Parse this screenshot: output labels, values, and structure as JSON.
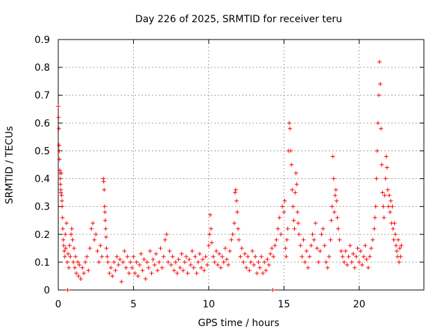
{
  "chart_data": {
    "type": "scatter",
    "title": "Day 226 of 2025, SRMTID for receiver teru",
    "xlabel": "GPS time / hours",
    "ylabel": "SRMTID / TECUs",
    "xlim": [
      0,
      24.3
    ],
    "ylim": [
      0,
      0.9
    ],
    "grid": true,
    "marker": "plus",
    "color": "#ff0000",
    "x_ticks": [
      0,
      5,
      10,
      15,
      20
    ],
    "x_tick_labels": [
      "0",
      "5",
      "10",
      "15",
      "20"
    ],
    "y_ticks": [
      0,
      0.1,
      0.2,
      0.3,
      0.4,
      0.5,
      0.6,
      0.7,
      0.8,
      0.9
    ],
    "y_tick_labels": [
      "0",
      "0.1",
      "0.2",
      "0.3",
      "0.4",
      "0.5",
      "0.6",
      "0.7",
      "0.8",
      "0.9"
    ],
    "series": [
      {
        "name": "SRMTID",
        "points": [
          [
            0.0,
            0.66
          ],
          [
            0.02,
            0.62
          ],
          [
            0.04,
            0.58
          ],
          [
            0.05,
            0.52
          ],
          [
            0.07,
            0.5
          ],
          [
            0.08,
            0.47
          ],
          [
            0.1,
            0.43
          ],
          [
            0.12,
            0.42
          ],
          [
            0.13,
            0.4
          ],
          [
            0.15,
            0.38
          ],
          [
            0.17,
            0.36
          ],
          [
            0.18,
            0.35
          ],
          [
            0.2,
            0.42
          ],
          [
            0.22,
            0.34
          ],
          [
            0.24,
            0.32
          ],
          [
            0.26,
            0.3
          ],
          [
            0.28,
            0.26
          ],
          [
            0.3,
            0.22
          ],
          [
            0.33,
            0.18
          ],
          [
            0.36,
            0.16
          ],
          [
            0.4,
            0.14
          ],
          [
            0.43,
            0.12
          ],
          [
            0.47,
            0.2
          ],
          [
            0.5,
            0.15
          ],
          [
            0.55,
            0.24
          ],
          [
            0.6,
            0.1
          ],
          [
            0.62,
            0.0
          ],
          [
            0.65,
            0.13
          ],
          [
            0.7,
            0.08
          ],
          [
            0.75,
            0.16
          ],
          [
            0.8,
            0.12
          ],
          [
            0.85,
            0.2
          ],
          [
            0.9,
            0.22
          ],
          [
            0.95,
            0.18
          ],
          [
            1.0,
            0.1
          ],
          [
            1.05,
            0.15
          ],
          [
            1.1,
            0.08
          ],
          [
            1.15,
            0.12
          ],
          [
            1.2,
            0.06
          ],
          [
            1.3,
            0.1
          ],
          [
            1.35,
            0.05
          ],
          [
            1.4,
            0.09
          ],
          [
            1.5,
            0.04
          ],
          [
            1.6,
            0.08
          ],
          [
            1.7,
            0.06
          ],
          [
            1.8,
            0.1
          ],
          [
            1.9,
            0.12
          ],
          [
            2.0,
            0.07
          ],
          [
            2.1,
            0.15
          ],
          [
            2.2,
            0.22
          ],
          [
            2.3,
            0.24
          ],
          [
            2.4,
            0.18
          ],
          [
            2.5,
            0.2
          ],
          [
            2.6,
            0.14
          ],
          [
            2.7,
            0.1
          ],
          [
            2.8,
            0.16
          ],
          [
            2.9,
            0.12
          ],
          [
            3.0,
            0.4
          ],
          [
            3.02,
            0.39
          ],
          [
            3.05,
            0.36
          ],
          [
            3.08,
            0.3
          ],
          [
            3.1,
            0.28
          ],
          [
            3.12,
            0.25
          ],
          [
            3.15,
            0.22
          ],
          [
            3.18,
            0.19
          ],
          [
            3.2,
            0.15
          ],
          [
            3.25,
            0.12
          ],
          [
            3.3,
            0.1
          ],
          [
            3.4,
            0.06
          ],
          [
            3.5,
            0.08
          ],
          [
            3.6,
            0.05
          ],
          [
            3.7,
            0.1
          ],
          [
            3.8,
            0.07
          ],
          [
            3.9,
            0.12
          ],
          [
            4.0,
            0.09
          ],
          [
            4.1,
            0.11
          ],
          [
            4.2,
            0.03
          ],
          [
            4.3,
            0.1
          ],
          [
            4.4,
            0.14
          ],
          [
            4.5,
            0.08
          ],
          [
            4.6,
            0.12
          ],
          [
            4.7,
            0.06
          ],
          [
            4.8,
            0.1
          ],
          [
            4.9,
            0.08
          ],
          [
            5.0,
            0.12
          ],
          [
            5.1,
            0.06
          ],
          [
            5.2,
            0.1
          ],
          [
            5.3,
            0.05
          ],
          [
            5.4,
            0.09
          ],
          [
            5.5,
            0.13
          ],
          [
            5.6,
            0.07
          ],
          [
            5.7,
            0.11
          ],
          [
            5.8,
            0.04
          ],
          [
            5.9,
            0.1
          ],
          [
            6.0,
            0.08
          ],
          [
            6.1,
            0.14
          ],
          [
            6.2,
            0.06
          ],
          [
            6.3,
            0.11
          ],
          [
            6.4,
            0.09
          ],
          [
            6.5,
            0.13
          ],
          [
            6.6,
            0.07
          ],
          [
            6.7,
            0.1
          ],
          [
            6.8,
            0.15
          ],
          [
            6.9,
            0.08
          ],
          [
            7.0,
            0.12
          ],
          [
            7.1,
            0.18
          ],
          [
            7.2,
            0.2
          ],
          [
            7.3,
            0.1
          ],
          [
            7.4,
            0.14
          ],
          [
            7.5,
            0.09
          ],
          [
            7.6,
            0.12
          ],
          [
            7.7,
            0.07
          ],
          [
            7.8,
            0.1
          ],
          [
            7.9,
            0.06
          ],
          [
            8.0,
            0.11
          ],
          [
            8.1,
            0.08
          ],
          [
            8.2,
            0.13
          ],
          [
            8.3,
            0.07
          ],
          [
            8.4,
            0.1
          ],
          [
            8.5,
            0.12
          ],
          [
            8.6,
            0.06
          ],
          [
            8.7,
            0.11
          ],
          [
            8.8,
            0.09
          ],
          [
            8.9,
            0.14
          ],
          [
            9.0,
            0.08
          ],
          [
            9.1,
            0.12
          ],
          [
            9.2,
            0.06
          ],
          [
            9.3,
            0.1
          ],
          [
            9.4,
            0.13
          ],
          [
            9.5,
            0.08
          ],
          [
            9.6,
            0.11
          ],
          [
            9.7,
            0.07
          ],
          [
            9.8,
            0.12
          ],
          [
            9.9,
            0.09
          ],
          [
            10.0,
            0.16
          ],
          [
            10.05,
            0.2
          ],
          [
            10.1,
            0.27
          ],
          [
            10.15,
            0.22
          ],
          [
            10.2,
            0.17
          ],
          [
            10.3,
            0.12
          ],
          [
            10.4,
            0.1
          ],
          [
            10.5,
            0.14
          ],
          [
            10.6,
            0.09
          ],
          [
            10.7,
            0.13
          ],
          [
            10.8,
            0.08
          ],
          [
            10.9,
            0.12
          ],
          [
            11.0,
            0.1
          ],
          [
            11.1,
            0.15
          ],
          [
            11.2,
            0.11
          ],
          [
            11.3,
            0.09
          ],
          [
            11.4,
            0.14
          ],
          [
            11.5,
            0.18
          ],
          [
            11.6,
            0.2
          ],
          [
            11.7,
            0.24
          ],
          [
            11.75,
            0.35
          ],
          [
            11.8,
            0.36
          ],
          [
            11.85,
            0.32
          ],
          [
            11.9,
            0.28
          ],
          [
            11.95,
            0.22
          ],
          [
            12.0,
            0.18
          ],
          [
            12.1,
            0.12
          ],
          [
            12.2,
            0.15
          ],
          [
            12.3,
            0.1
          ],
          [
            12.4,
            0.13
          ],
          [
            12.5,
            0.08
          ],
          [
            12.6,
            0.12
          ],
          [
            12.7,
            0.07
          ],
          [
            12.8,
            0.1
          ],
          [
            12.9,
            0.14
          ],
          [
            13.0,
            0.09
          ],
          [
            13.1,
            0.12
          ],
          [
            13.2,
            0.06
          ],
          [
            13.3,
            0.1
          ],
          [
            13.4,
            0.08
          ],
          [
            13.5,
            0.12
          ],
          [
            13.6,
            0.06
          ],
          [
            13.7,
            0.1
          ],
          [
            13.8,
            0.07
          ],
          [
            13.9,
            0.11
          ],
          [
            14.0,
            0.09
          ],
          [
            14.1,
            0.13
          ],
          [
            14.2,
            0.15
          ],
          [
            14.25,
            0.0
          ],
          [
            14.3,
            0.12
          ],
          [
            14.4,
            0.16
          ],
          [
            14.5,
            0.18
          ],
          [
            14.6,
            0.22
          ],
          [
            14.7,
            0.26
          ],
          [
            14.8,
            0.2
          ],
          [
            14.9,
            0.3
          ],
          [
            15.0,
            0.28
          ],
          [
            15.05,
            0.32
          ],
          [
            15.1,
            0.15
          ],
          [
            15.15,
            0.12
          ],
          [
            15.2,
            0.18
          ],
          [
            15.25,
            0.22
          ],
          [
            15.3,
            0.5
          ],
          [
            15.35,
            0.6
          ],
          [
            15.4,
            0.58
          ],
          [
            15.45,
            0.5
          ],
          [
            15.5,
            0.45
          ],
          [
            15.55,
            0.36
          ],
          [
            15.6,
            0.3
          ],
          [
            15.65,
            0.25
          ],
          [
            15.7,
            0.22
          ],
          [
            15.75,
            0.35
          ],
          [
            15.8,
            0.42
          ],
          [
            15.85,
            0.38
          ],
          [
            15.9,
            0.28
          ],
          [
            15.95,
            0.24
          ],
          [
            16.0,
            0.2
          ],
          [
            16.1,
            0.16
          ],
          [
            16.2,
            0.12
          ],
          [
            16.3,
            0.18
          ],
          [
            16.4,
            0.1
          ],
          [
            16.5,
            0.14
          ],
          [
            16.6,
            0.08
          ],
          [
            16.7,
            0.12
          ],
          [
            16.8,
            0.16
          ],
          [
            16.9,
            0.2
          ],
          [
            17.0,
            0.18
          ],
          [
            17.1,
            0.24
          ],
          [
            17.2,
            0.15
          ],
          [
            17.3,
            0.1
          ],
          [
            17.4,
            0.14
          ],
          [
            17.5,
            0.2
          ],
          [
            17.6,
            0.22
          ],
          [
            17.7,
            0.16
          ],
          [
            17.8,
            0.1
          ],
          [
            17.9,
            0.08
          ],
          [
            18.0,
            0.12
          ],
          [
            18.1,
            0.18
          ],
          [
            18.15,
            0.25
          ],
          [
            18.2,
            0.3
          ],
          [
            18.25,
            0.48
          ],
          [
            18.3,
            0.4
          ],
          [
            18.35,
            0.28
          ],
          [
            18.4,
            0.34
          ],
          [
            18.45,
            0.36
          ],
          [
            18.5,
            0.32
          ],
          [
            18.55,
            0.26
          ],
          [
            18.6,
            0.22
          ],
          [
            18.7,
            0.18
          ],
          [
            18.8,
            0.14
          ],
          [
            18.9,
            0.12
          ],
          [
            19.0,
            0.1
          ],
          [
            19.1,
            0.14
          ],
          [
            19.2,
            0.09
          ],
          [
            19.3,
            0.12
          ],
          [
            19.4,
            0.16
          ],
          [
            19.5,
            0.1
          ],
          [
            19.6,
            0.13
          ],
          [
            19.7,
            0.08
          ],
          [
            19.8,
            0.12
          ],
          [
            19.9,
            0.15
          ],
          [
            20.0,
            0.1
          ],
          [
            20.1,
            0.14
          ],
          [
            20.2,
            0.09
          ],
          [
            20.3,
            0.12
          ],
          [
            20.4,
            0.16
          ],
          [
            20.5,
            0.11
          ],
          [
            20.6,
            0.08
          ],
          [
            20.7,
            0.12
          ],
          [
            20.8,
            0.15
          ],
          [
            20.9,
            0.18
          ],
          [
            21.0,
            0.22
          ],
          [
            21.05,
            0.26
          ],
          [
            21.1,
            0.3
          ],
          [
            21.15,
            0.4
          ],
          [
            21.2,
            0.5
          ],
          [
            21.25,
            0.6
          ],
          [
            21.3,
            0.7
          ],
          [
            21.35,
            0.82
          ],
          [
            21.4,
            0.74
          ],
          [
            21.45,
            0.58
          ],
          [
            21.5,
            0.45
          ],
          [
            21.55,
            0.35
          ],
          [
            21.6,
            0.3
          ],
          [
            21.65,
            0.26
          ],
          [
            21.7,
            0.34
          ],
          [
            21.75,
            0.4
          ],
          [
            21.8,
            0.48
          ],
          [
            21.85,
            0.44
          ],
          [
            21.9,
            0.36
          ],
          [
            21.95,
            0.3
          ],
          [
            22.0,
            0.34
          ],
          [
            22.05,
            0.28
          ],
          [
            22.1,
            0.32
          ],
          [
            22.15,
            0.24
          ],
          [
            22.2,
            0.3
          ],
          [
            22.25,
            0.22
          ],
          [
            22.3,
            0.18
          ],
          [
            22.35,
            0.24
          ],
          [
            22.4,
            0.2
          ],
          [
            22.45,
            0.16
          ],
          [
            22.5,
            0.14
          ],
          [
            22.55,
            0.12
          ],
          [
            22.6,
            0.18
          ],
          [
            22.65,
            0.1
          ],
          [
            22.7,
            0.15
          ],
          [
            22.75,
            0.12
          ],
          [
            22.8,
            0.16
          ]
        ]
      }
    ]
  }
}
